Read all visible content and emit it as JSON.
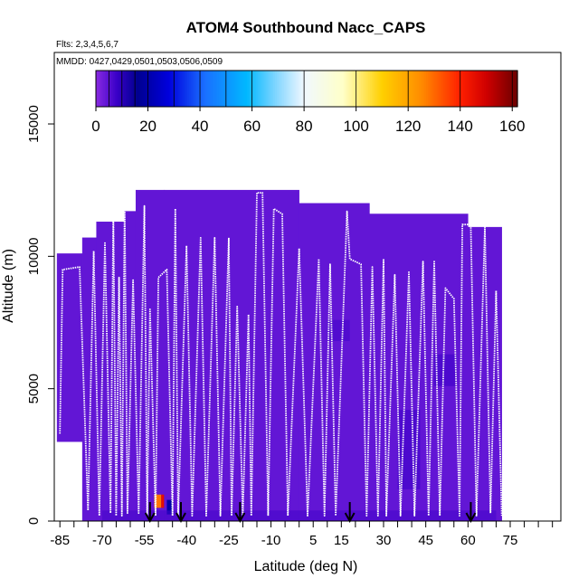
{
  "chart_data": {
    "type": "heatmap",
    "title": "ATOM4 Southbound Nacc_CAPS",
    "flights_note": "Flts: 2,3,4,5,6,7",
    "dates_note": "MMDD: 0427,0429,0501,0503,0506,0509",
    "xlabel": "Latitude (deg N)",
    "ylabel": "Altitude (m)",
    "xlim": [
      -87,
      93
    ],
    "ylim": [
      0,
      17700
    ],
    "x_ticks": [
      -85,
      -70,
      -55,
      -40,
      -25,
      -10,
      5,
      15,
      30,
      45,
      60,
      75
    ],
    "x_minor_ticks": [
      -80,
      -75,
      -65,
      -60,
      -50,
      -45,
      -35,
      -30,
      -20,
      -15,
      -5,
      0,
      10,
      20,
      25,
      35,
      40,
      50,
      55,
      65,
      70,
      80,
      85,
      90
    ],
    "y_ticks": [
      0,
      5000,
      10000,
      15000
    ],
    "colorbar": {
      "min": 0,
      "max": 162,
      "ticks": [
        0,
        20,
        40,
        60,
        80,
        100,
        120,
        140,
        160
      ],
      "divisions": [
        5,
        10,
        15,
        20,
        30,
        40,
        50,
        60,
        80,
        100,
        120,
        140,
        160
      ],
      "stops": [
        {
          "v": 0,
          "color": "#8a2be2"
        },
        {
          "v": 8,
          "color": "#3a00c8"
        },
        {
          "v": 16,
          "color": "#000090"
        },
        {
          "v": 28,
          "color": "#0000dd"
        },
        {
          "v": 42,
          "color": "#1a70ff"
        },
        {
          "v": 58,
          "color": "#00b8ff"
        },
        {
          "v": 70,
          "color": "#8ad8ff"
        },
        {
          "v": 80,
          "color": "#f0f8ff"
        },
        {
          "v": 95,
          "color": "#ffffc8"
        },
        {
          "v": 110,
          "color": "#ffd000"
        },
        {
          "v": 125,
          "color": "#ff8c00"
        },
        {
          "v": 140,
          "color": "#ff2000"
        },
        {
          "v": 150,
          "color": "#d00000"
        },
        {
          "v": 162,
          "color": "#6b0000"
        }
      ]
    },
    "background_value": 4,
    "coverage_columns": [
      {
        "x0": -86,
        "x1": -77,
        "alt": 10100
      },
      {
        "x0": -77,
        "x1": -72,
        "alt": 10700
      },
      {
        "x0": -72,
        "x1": -62,
        "alt": 11300
      },
      {
        "x0": -62,
        "x1": -58,
        "alt": 11700
      },
      {
        "x0": -58,
        "x1": -48,
        "alt": 12500
      },
      {
        "x0": -48,
        "x1": 0,
        "alt": 12500
      },
      {
        "x0": 0,
        "x1": 25,
        "alt": 12000
      },
      {
        "x0": 25,
        "x1": 60,
        "alt": 11600
      },
      {
        "x0": 60,
        "x1": 72,
        "alt": 11100
      }
    ],
    "coverage_floor": [
      {
        "x0": -86,
        "x1": -77,
        "alt": 3000
      },
      {
        "x0": -77,
        "x1": 72,
        "alt": 0
      }
    ],
    "hotspots": [
      {
        "x0": -51.5,
        "x1": -49,
        "y0": 500,
        "y1": 1000,
        "value": 128
      },
      {
        "x0": -49,
        "x1": -48,
        "y0": 500,
        "y1": 1000,
        "value": 146
      },
      {
        "x0": -47,
        "x1": -45,
        "y0": 250,
        "y1": 800,
        "value": 20
      },
      {
        "x0": 35,
        "x1": 43,
        "y0": 1200,
        "y1": 4200,
        "value": 8
      },
      {
        "x0": 48,
        "x1": 56,
        "y0": 5100,
        "y1": 6300,
        "value": 8
      },
      {
        "x0": 10,
        "x1": 18,
        "y0": 6800,
        "y1": 7600,
        "value": 7
      },
      {
        "x0": -70,
        "x1": 70,
        "y0": 0,
        "y1": 400,
        "value": 7
      }
    ],
    "flight_track": [
      [
        -85,
        3300
      ],
      [
        -84,
        9500
      ],
      [
        -78,
        9600
      ],
      [
        -75,
        400
      ],
      [
        -73,
        10200
      ],
      [
        -71,
        200
      ],
      [
        -69,
        10500
      ],
      [
        -67,
        300
      ],
      [
        -66,
        11700
      ],
      [
        -65,
        200
      ],
      [
        -64,
        9200
      ],
      [
        -63,
        200
      ],
      [
        -62,
        11900
      ],
      [
        -61,
        300
      ],
      [
        -59,
        9100
      ],
      [
        -57,
        300
      ],
      [
        -55,
        11900
      ],
      [
        -54,
        200
      ],
      [
        -53,
        8000
      ],
      [
        -51,
        200
      ],
      [
        -50,
        9200
      ],
      [
        -47,
        9500
      ],
      [
        -45,
        200
      ],
      [
        -44,
        11800
      ],
      [
        -43,
        200
      ],
      [
        -40,
        10400
      ],
      [
        -38,
        200
      ],
      [
        -35,
        10700
      ],
      [
        -33,
        200
      ],
      [
        -30,
        10700
      ],
      [
        -28,
        200
      ],
      [
        -25,
        10700
      ],
      [
        -24,
        200
      ],
      [
        -22,
        8100
      ],
      [
        -20,
        200
      ],
      [
        -18,
        7800
      ],
      [
        -17,
        200
      ],
      [
        -15,
        12400
      ],
      [
        -13,
        12400
      ],
      [
        -11,
        200
      ],
      [
        -9,
        11800
      ],
      [
        -6,
        11600
      ],
      [
        -4,
        200
      ],
      [
        0,
        10300
      ],
      [
        3,
        200
      ],
      [
        7,
        9900
      ],
      [
        9,
        200
      ],
      [
        11,
        9700
      ],
      [
        13,
        200
      ],
      [
        17,
        11700
      ],
      [
        18,
        9900
      ],
      [
        22,
        9700
      ],
      [
        24,
        200
      ],
      [
        26,
        9600
      ],
      [
        28,
        200
      ],
      [
        30,
        9900
      ],
      [
        31,
        200
      ],
      [
        34,
        9300
      ],
      [
        36,
        200
      ],
      [
        39,
        9400
      ],
      [
        41,
        200
      ],
      [
        44,
        9800
      ],
      [
        46,
        200
      ],
      [
        48,
        9800
      ],
      [
        50,
        200
      ],
      [
        52,
        8800
      ],
      [
        55,
        8400
      ],
      [
        57,
        200
      ],
      [
        58,
        11200
      ],
      [
        61,
        11200
      ],
      [
        63,
        200
      ],
      [
        66,
        11100
      ],
      [
        68,
        300
      ],
      [
        70,
        8700
      ],
      [
        72,
        200
      ]
    ],
    "arrows_x": [
      -53,
      -42,
      -21,
      18,
      61
    ]
  }
}
